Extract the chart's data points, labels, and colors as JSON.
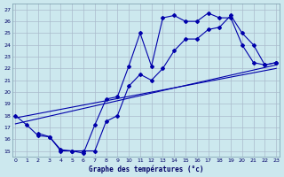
{
  "title": "Graphe des températures (°c)",
  "background_color": "#cce8ee",
  "grid_color": "#aabbcc",
  "line_color": "#0000aa",
  "xlim_min": -0.3,
  "xlim_max": 23.3,
  "ylim_min": 14.5,
  "ylim_max": 27.5,
  "xticks": [
    0,
    1,
    2,
    3,
    4,
    5,
    6,
    7,
    8,
    9,
    10,
    11,
    12,
    13,
    14,
    15,
    16,
    17,
    18,
    19,
    20,
    21,
    22,
    23
  ],
  "yticks": [
    15,
    16,
    17,
    18,
    19,
    20,
    21,
    22,
    23,
    24,
    25,
    26,
    27
  ],
  "curve1_x": [
    0,
    1,
    2,
    3,
    4,
    5,
    6,
    7,
    8,
    9,
    10,
    11,
    12,
    13,
    14,
    15,
    16,
    17,
    18,
    19,
    20,
    21,
    22,
    23
  ],
  "curve1_y": [
    18.0,
    17.2,
    16.3,
    16.2,
    15.0,
    15.0,
    14.8,
    17.2,
    19.4,
    19.6,
    22.2,
    25.0,
    22.2,
    26.3,
    26.5,
    26.0,
    26.0,
    26.7,
    26.3,
    26.3,
    24.0,
    22.5,
    22.3,
    22.5
  ],
  "curve2_x": [
    2,
    3,
    4,
    5,
    6,
    7,
    8,
    9,
    10,
    11,
    12,
    13,
    14,
    15,
    16,
    17,
    18,
    19,
    20,
    21,
    22,
    23
  ],
  "curve2_y": [
    16.5,
    16.2,
    15.1,
    15.0,
    15.0,
    15.0,
    17.5,
    18.0,
    20.5,
    21.5,
    21.0,
    22.0,
    23.5,
    24.5,
    24.5,
    25.3,
    25.5,
    26.5,
    25.0,
    24.0,
    22.3,
    22.5
  ],
  "trend1_x": [
    0,
    23
  ],
  "trend1_y": [
    17.8,
    22.0
  ],
  "trend2_x": [
    0,
    23
  ],
  "trend2_y": [
    17.3,
    22.3
  ]
}
